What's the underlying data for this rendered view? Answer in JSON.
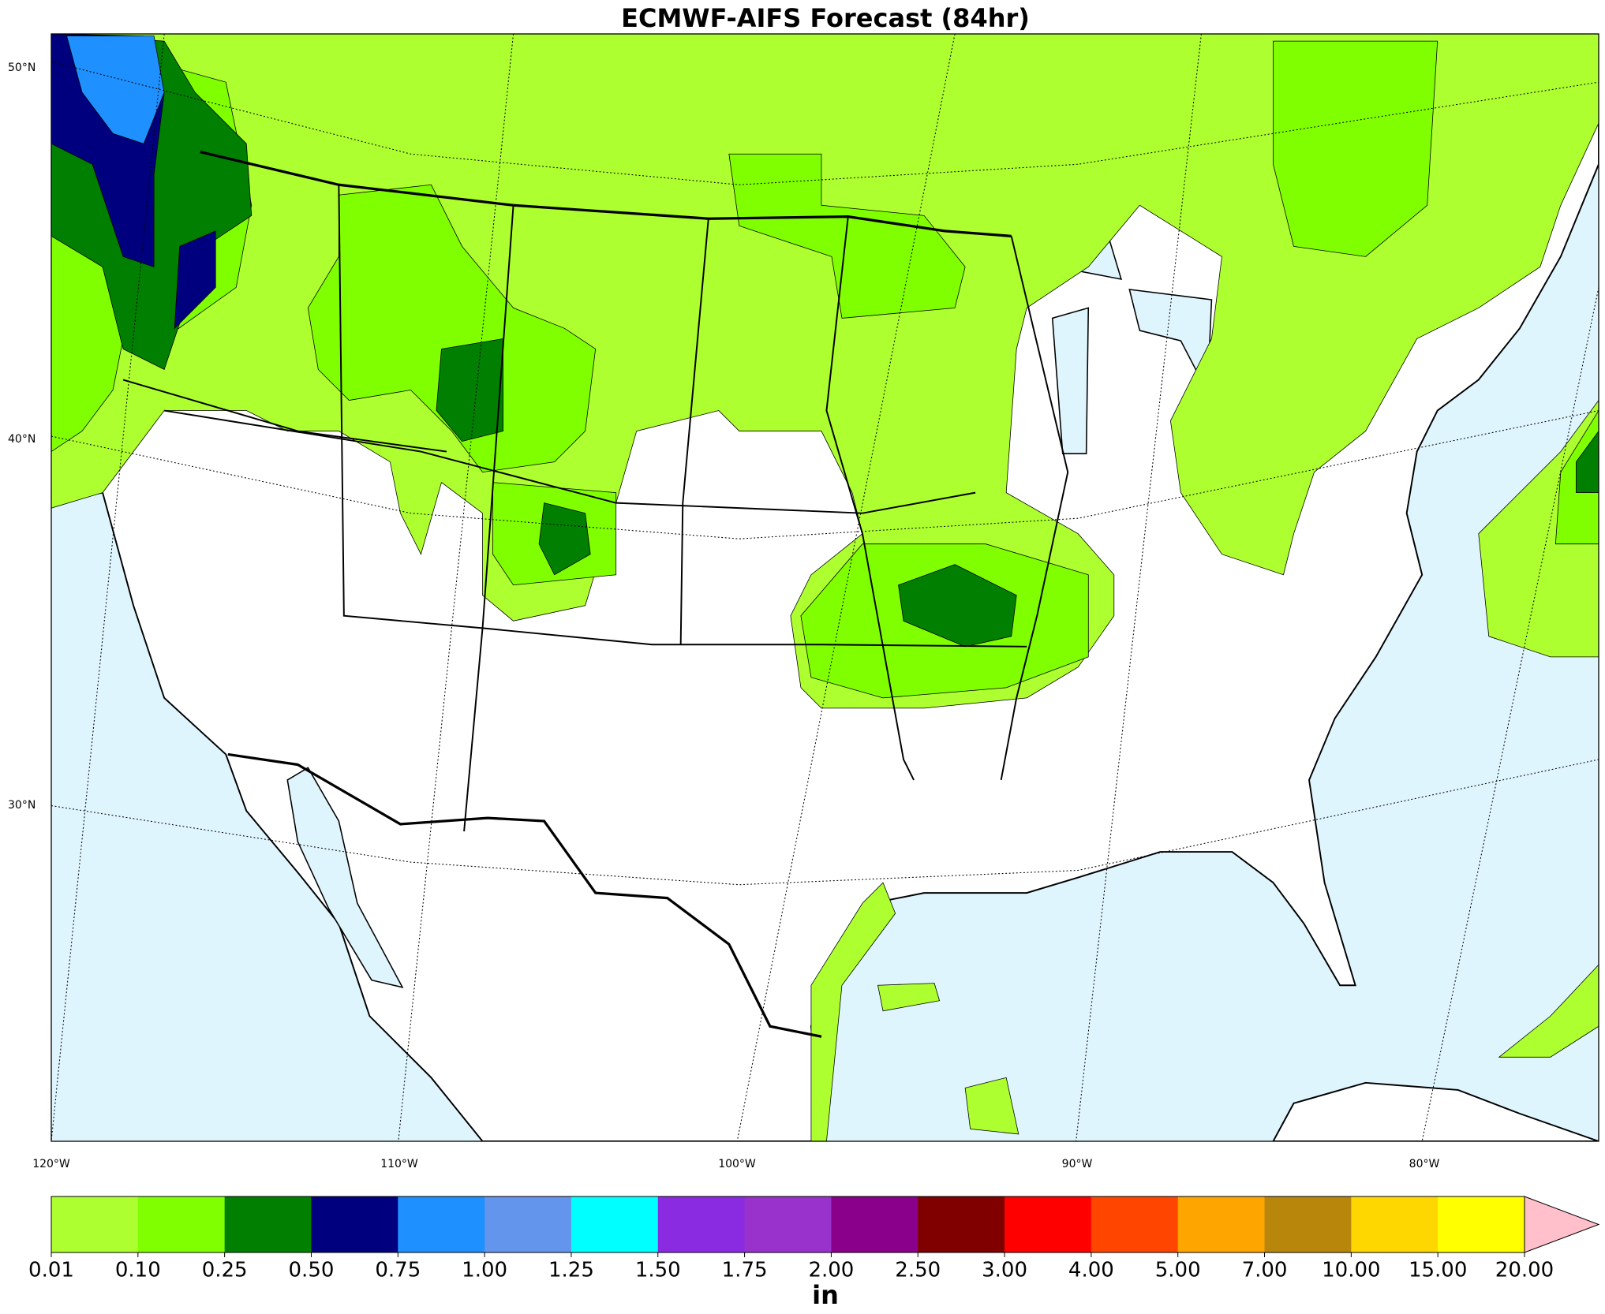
{
  "title": "ECMWF-AIFS Forecast (84hr)",
  "map": {
    "lat_labels": [
      "50°N",
      "40°N",
      "30°N"
    ],
    "lon_labels": [
      "120°W",
      "110°W",
      "100°W",
      "90°W",
      "80°W"
    ]
  },
  "colorbar": {
    "levels": [
      {
        "value": 0.01,
        "label": "0.01"
      },
      {
        "value": 0.1,
        "label": "0.10"
      },
      {
        "value": 0.25,
        "label": "0.25"
      },
      {
        "value": 0.5,
        "label": "0.50"
      },
      {
        "value": 0.75,
        "label": "0.75"
      },
      {
        "value": 1,
        "label": "1.00"
      },
      {
        "value": 1.25,
        "label": "1.25"
      },
      {
        "value": 1.5,
        "label": "1.50"
      },
      {
        "value": 1.75,
        "label": "1.75"
      },
      {
        "value": 2,
        "label": "2.00"
      },
      {
        "value": 2.5,
        "label": "2.50"
      },
      {
        "value": 3,
        "label": "3.00"
      },
      {
        "value": 4,
        "label": "4.00"
      },
      {
        "value": 5,
        "label": "5.00"
      },
      {
        "value": 7,
        "label": "7.00"
      },
      {
        "value": 10,
        "label": "10.00"
      },
      {
        "value": 15,
        "label": "15.00"
      },
      {
        "value": 20,
        "label": "20.00"
      }
    ],
    "colors": [
      "#adff2f",
      "#7fff00",
      "#007f00",
      "#00007f",
      "#1e90ff",
      "#6495ed",
      "#00ffff",
      "#8a2be2",
      "#9932cc",
      "#8b008b",
      "#800000",
      "#ff0000",
      "#ff4500",
      "#ffa500",
      "#b8860b",
      "#ffd700",
      "#ffff00"
    ],
    "extend_color": "#ffc0cb",
    "unit": "in"
  }
}
